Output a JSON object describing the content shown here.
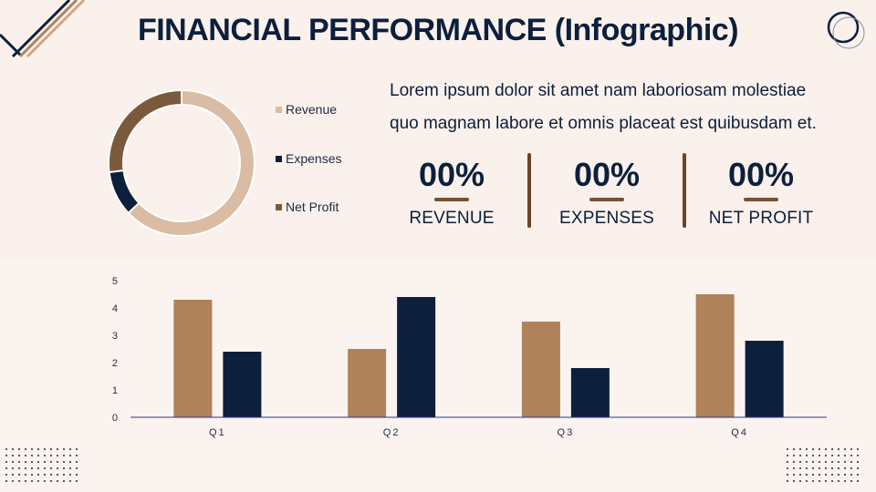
{
  "title": "FINANCIAL PERFORMANCE (Infographic)",
  "description": {
    "line1": "Lorem ipsum dolor sit amet nam laboriosam molestiae",
    "line2": "quo magnam labore et omnis placeat est quibusdam et."
  },
  "kpis": [
    {
      "value": "00%",
      "label": "REVENUE"
    },
    {
      "value": "00%",
      "label": "EXPENSES"
    },
    {
      "value": "00%",
      "label": "NET PROFIT"
    }
  ],
  "colors": {
    "revenue_light": "#d9bca3",
    "brown": "#b0825a",
    "dark_brown": "#7b5a3c",
    "navy": "#0c1f3c",
    "divider": "#6b4428"
  },
  "chart_data": [
    {
      "type": "pie",
      "categories": [
        "Revenue",
        "Expenses",
        "Net Profit"
      ],
      "values": [
        63,
        10,
        27
      ],
      "colors": [
        "#d9bca3",
        "#0c1f3c",
        "#7b5a3c"
      ],
      "legend": "right"
    },
    {
      "type": "bar",
      "categories": [
        "Q1",
        "Q2",
        "Q3",
        "Q4"
      ],
      "series": [
        {
          "values": [
            4.3,
            2.5,
            3.5,
            4.5
          ],
          "color": "#b0825a"
        },
        {
          "values": [
            2.4,
            4.4,
            1.8,
            2.8
          ],
          "color": "#0c1f3c"
        }
      ],
      "ylim": [
        0,
        5
      ],
      "yticks": [
        0,
        1,
        2,
        3,
        4,
        5
      ],
      "grid": false,
      "legend": "none"
    }
  ]
}
